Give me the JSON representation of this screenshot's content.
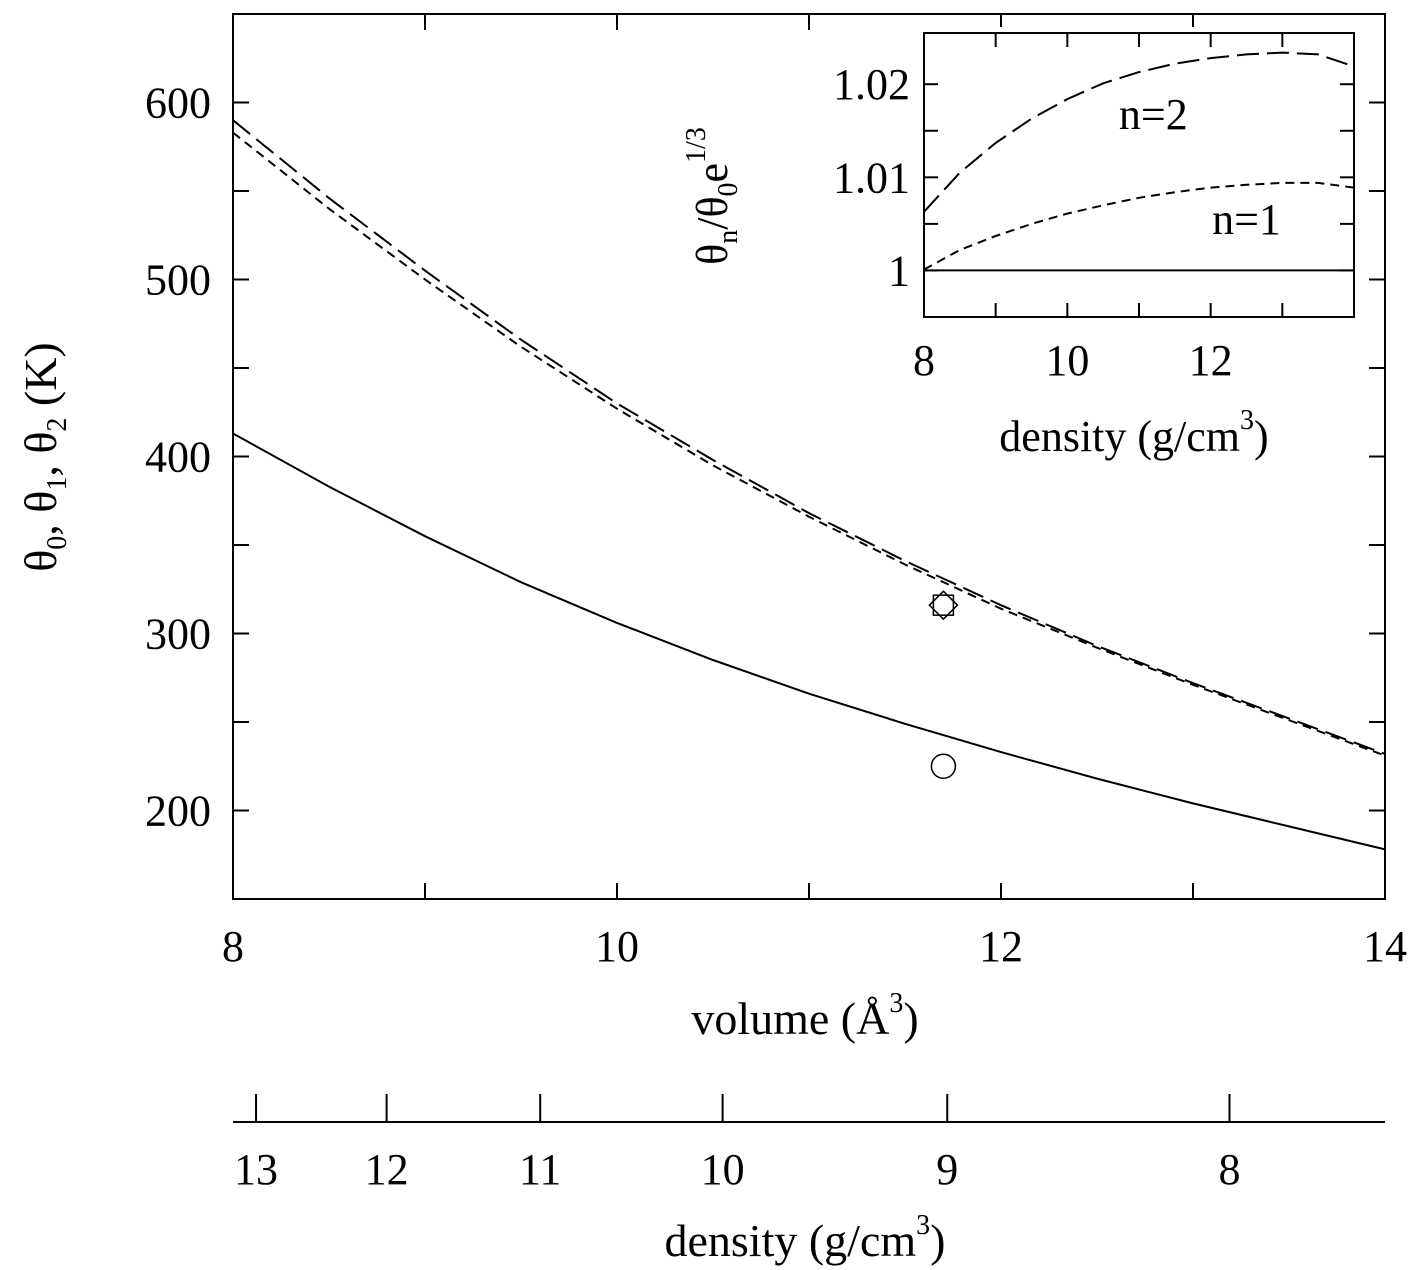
{
  "chart_data": [
    {
      "type": "line",
      "xlabel": "volume (Å",
      "xlabel_sup": "3",
      "xlabel_end": ")",
      "ylabel": {
        "theta": "θ",
        "sub0": "0",
        "sub1": "1",
        "sub2": "2",
        "sep": ", ",
        "unit": " (K)"
      },
      "xlim": [
        8,
        14
      ],
      "ylim": [
        150,
        650
      ],
      "x_ticks": [
        8,
        10,
        12,
        14
      ],
      "x_minor_ticks": [
        9,
        11,
        13
      ],
      "y_ticks": [
        200,
        300,
        400,
        500,
        600
      ],
      "y_minor_ticks": [
        250,
        350,
        450,
        550
      ],
      "x_tick_labels": [
        "8",
        "10",
        "12",
        "14"
      ],
      "y_tick_labels": [
        "200",
        "300",
        "400",
        "500",
        "600"
      ],
      "series": [
        {
          "style": "solid",
          "x": [
            8,
            8.5,
            9,
            9.5,
            10,
            10.5,
            11,
            11.5,
            12,
            12.5,
            13,
            13.5,
            14
          ],
          "y": [
            413,
            383,
            355,
            329,
            306,
            285,
            266,
            249,
            233,
            218,
            204,
            191,
            178
          ]
        },
        {
          "style": "short-dash",
          "x": [
            8,
            8.5,
            9,
            9.5,
            10,
            10.5,
            11,
            11.5,
            12,
            12.5,
            13,
            13.5,
            14
          ],
          "y": [
            583,
            540,
            500,
            462,
            427,
            395,
            366,
            339,
            314,
            292,
            271,
            251,
            231
          ]
        },
        {
          "style": "long-dash",
          "x": [
            8,
            8.5,
            9,
            9.5,
            10,
            10.5,
            11,
            11.5,
            12,
            12.5,
            13,
            13.5,
            14
          ],
          "y": [
            590,
            546,
            505,
            466,
            430,
            398,
            368,
            341,
            316,
            293,
            272,
            252,
            232
          ]
        }
      ],
      "markers": [
        {
          "shape": "circle",
          "x": 11.7,
          "y": 225
        },
        {
          "shape": "square",
          "x": 11.7,
          "y": 316
        },
        {
          "shape": "diamond",
          "x": 11.7,
          "y": 316
        }
      ],
      "secondary_axis": {
        "label": "density (g/cm",
        "label_sup": "3",
        "label_end": ")",
        "ticks": [
          {
            "label": "13",
            "volume": 8.12
          },
          {
            "label": "12",
            "volume": 8.8
          },
          {
            "label": "11",
            "volume": 9.6
          },
          {
            "label": "10",
            "volume": 10.55
          },
          {
            "label": "9",
            "volume": 11.72
          },
          {
            "label": "8",
            "volume": 13.19
          }
        ]
      }
    },
    {
      "type": "line",
      "xlabel": "density (g/cm",
      "xlabel_sup": "3",
      "xlabel_end": ")",
      "ylabel": {
        "theta_n": "θ",
        "sub_n": "n",
        "slash": "/θ",
        "sub_0": "0",
        "e": "e",
        "sup": "1/3"
      },
      "xlim": [
        8,
        14
      ],
      "ylim": [
        0.995,
        1.0255
      ],
      "x_ticks": [
        8,
        10,
        12
      ],
      "x_minor_ticks": [
        9,
        11,
        13
      ],
      "y_ticks": [
        1,
        1.01,
        1.02
      ],
      "y_minor_ticks": [
        1.005,
        1.015
      ],
      "x_tick_labels": [
        "8",
        "10",
        "12"
      ],
      "y_tick_labels": [
        "1",
        "1.01",
        "1.02"
      ],
      "series": [
        {
          "name": "n=2",
          "style": "long-dash",
          "x": [
            8,
            8.5,
            9,
            9.5,
            10,
            10.5,
            11,
            11.5,
            12,
            12.5,
            13,
            13.5,
            14
          ],
          "y": [
            1.0063,
            1.0105,
            1.0137,
            1.0163,
            1.0184,
            1.0201,
            1.0213,
            1.0222,
            1.0228,
            1.0232,
            1.0234,
            1.0232,
            1.0219
          ]
        },
        {
          "name": "n=1",
          "style": "short-dash",
          "x": [
            8,
            8.5,
            9,
            9.5,
            10,
            10.5,
            11,
            11.5,
            12,
            12.5,
            13,
            13.5,
            14
          ],
          "y": [
            1.0001,
            1.0022,
            1.0037,
            1.005,
            1.0061,
            1.007,
            1.0078,
            1.0084,
            1.0089,
            1.0092,
            1.0094,
            1.0094,
            1.0089
          ]
        },
        {
          "name": "",
          "style": "solid",
          "x": [
            8,
            14
          ],
          "y": [
            1.0,
            1.0
          ]
        }
      ],
      "annotations": [
        {
          "text": "n=2",
          "x": 11.2,
          "y": 1.0168
        },
        {
          "text": "n=1",
          "x": 12.5,
          "y": 1.0055
        }
      ]
    }
  ]
}
